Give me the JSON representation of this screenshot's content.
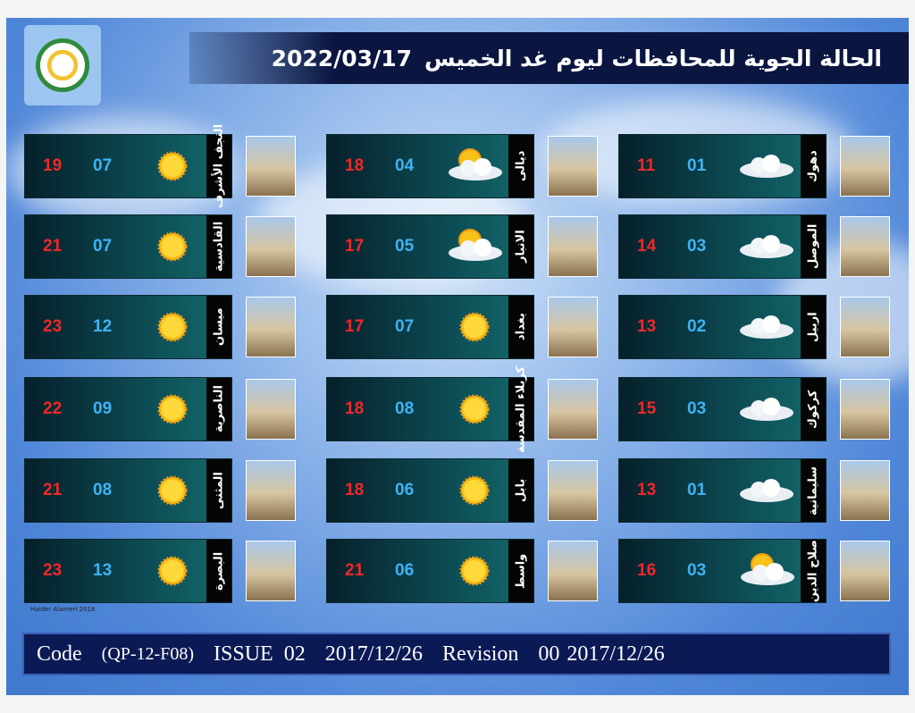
{
  "title": {
    "text": "الحالة الجوية للمحافظات ليوم غد الخميس",
    "date": "2022/03/17"
  },
  "columns": [
    [
      {
        "name": "النجف الأشرف",
        "max": "19",
        "min": "07",
        "weather": "sun-icon"
      },
      {
        "name": "القادسية",
        "max": "21",
        "min": "07",
        "weather": "sun-icon"
      },
      {
        "name": "ميسان",
        "max": "23",
        "min": "12",
        "weather": "sun-icon"
      },
      {
        "name": "الناصرية",
        "max": "22",
        "min": "09",
        "weather": "sun-icon"
      },
      {
        "name": "المثنى",
        "max": "21",
        "min": "08",
        "weather": "sun-icon"
      },
      {
        "name": "البصرة",
        "max": "23",
        "min": "13",
        "weather": "sun-icon"
      }
    ],
    [
      {
        "name": "ديالى",
        "max": "18",
        "min": "04",
        "weather": "partly-cloudy-icon"
      },
      {
        "name": "الانبار",
        "max": "17",
        "min": "05",
        "weather": "partly-cloudy-icon"
      },
      {
        "name": "بغداد",
        "max": "17",
        "min": "07",
        "weather": "sun-icon"
      },
      {
        "name": "كربلاء المقدسة",
        "max": "18",
        "min": "08",
        "weather": "sun-icon"
      },
      {
        "name": "بابل",
        "max": "18",
        "min": "06",
        "weather": "sun-icon"
      },
      {
        "name": "واسط",
        "max": "21",
        "min": "06",
        "weather": "sun-icon"
      }
    ],
    [
      {
        "name": "دهوك",
        "max": "11",
        "min": "01",
        "weather": "cloud-icon"
      },
      {
        "name": "الموصل",
        "max": "14",
        "min": "03",
        "weather": "cloud-icon"
      },
      {
        "name": "اربيل",
        "max": "13",
        "min": "02",
        "weather": "cloud-icon"
      },
      {
        "name": "كركوك",
        "max": "15",
        "min": "03",
        "weather": "cloud-icon"
      },
      {
        "name": "سليمانية",
        "max": "13",
        "min": "01",
        "weather": "cloud-icon"
      },
      {
        "name": "صلاح الدين",
        "max": "16",
        "min": "03",
        "weather": "partly-cloudy-icon"
      }
    ]
  ],
  "credit": "Haider Alameri 2018",
  "footer": {
    "code_label": "Code",
    "code": "(QP-12-F08)",
    "issue_label": "ISSUE",
    "issue": "02",
    "issue_date": "2017/12/26",
    "revision_label": "Revision",
    "revision": "00",
    "revision_date": "2017/12/26"
  },
  "colors": {
    "max": "#f0282a",
    "min": "#3fb3f5",
    "title_bar": "#0a1540",
    "footer": "#0b1a55"
  }
}
